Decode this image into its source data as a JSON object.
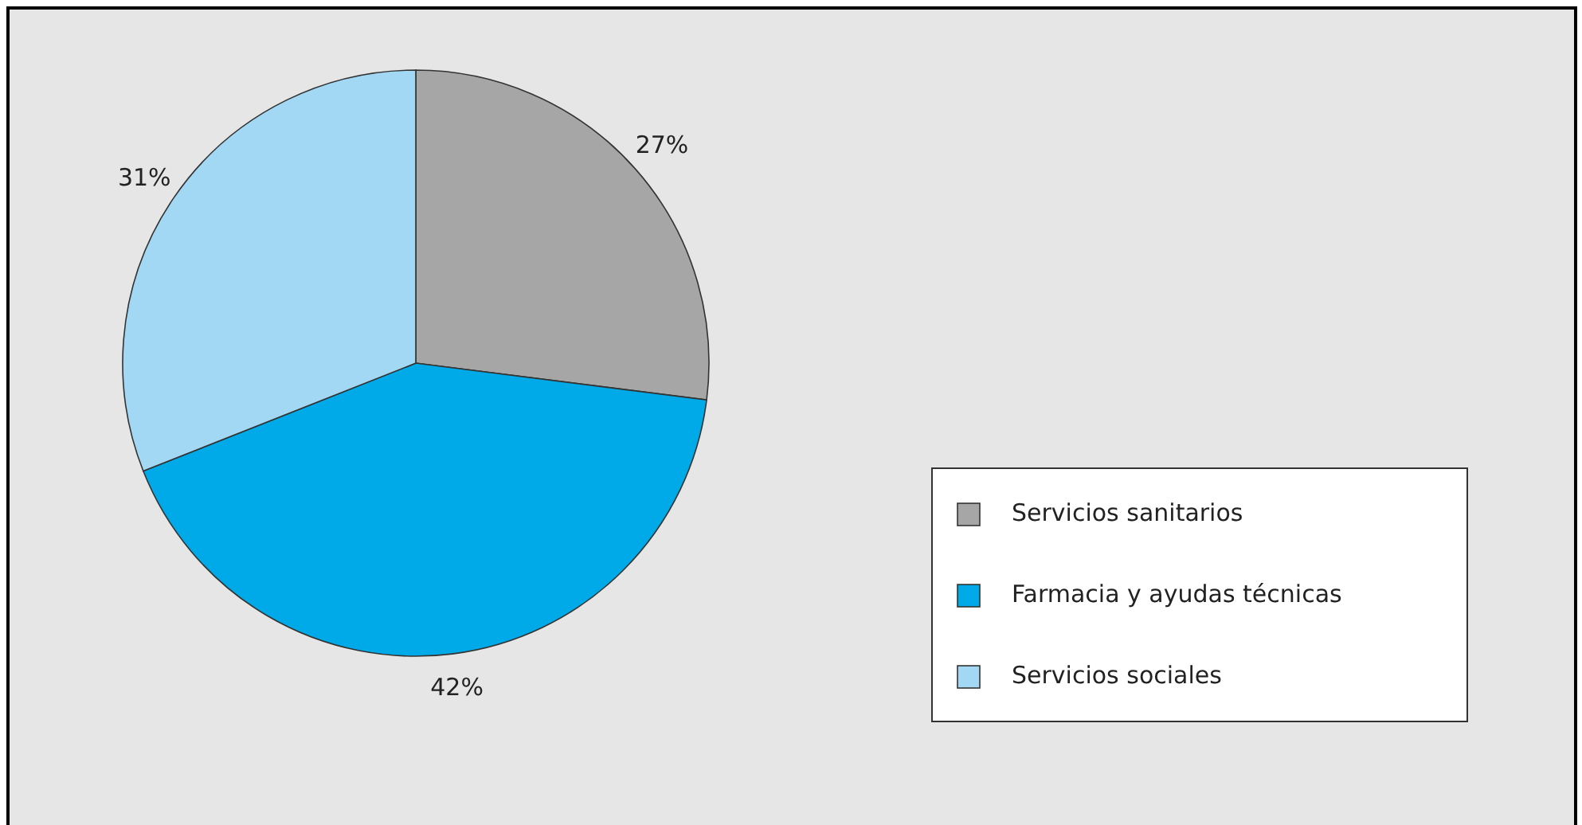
{
  "chart_data": {
    "type": "pie",
    "categories": [
      "Servicios sanitarios",
      "Farmacia y ayudas técnicas",
      "Servicios sociales"
    ],
    "values": [
      27,
      42,
      31
    ],
    "colors": [
      "#a6a6a6",
      "#00a9e8",
      "#a3d8f5"
    ],
    "value_labels": [
      "27%",
      "42%",
      "31%"
    ],
    "legend": "right"
  }
}
